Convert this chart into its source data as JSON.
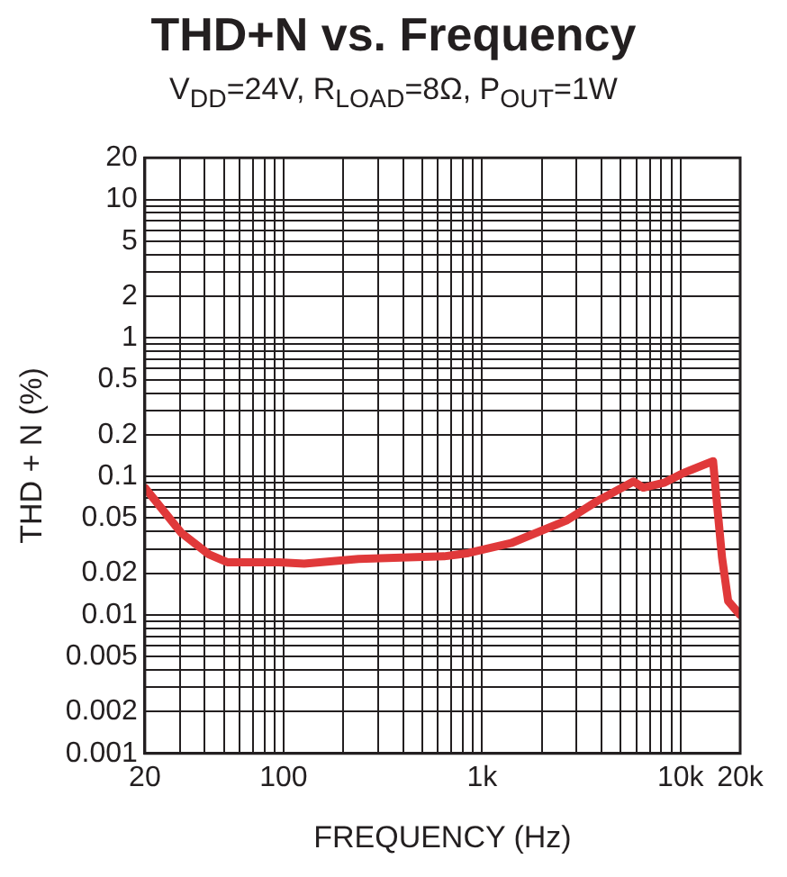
{
  "chart_data": {
    "type": "line",
    "title": "THD+N vs. Frequency",
    "subtitle": "V$_{DD}$=24V, R$_{LOAD}$=8Ω, P$_{OUT}$=1W",
    "xlabel": "FREQUENCY (Hz)",
    "ylabel": "THD + N (%)",
    "x": [
      20,
      30.6,
      42,
      52,
      95,
      127,
      239,
      644,
      855,
      1400,
      2660,
      3780,
      5800,
      6500,
      8260,
      10200,
      14600,
      16200,
      17400,
      20000
    ],
    "series": [
      {
        "color": "#e0393a",
        "values": [
          0.083,
          0.039,
          0.0274,
          0.024,
          0.024,
          0.0235,
          0.0254,
          0.0265,
          0.028,
          0.033,
          0.048,
          0.066,
          0.092,
          0.083,
          0.09,
          0.105,
          0.129,
          0.026,
          0.0126,
          0.01
        ]
      }
    ],
    "log": "xy",
    "xlim": [
      20,
      20000
    ],
    "ylim": [
      0.001,
      20
    ],
    "xticks": [
      20,
      {
        "value": 30,
        "label": null
      },
      {
        "value": 40,
        "label": null
      },
      {
        "value": 50,
        "label": null
      },
      {
        "value": 60,
        "label": null
      },
      {
        "value": 70,
        "label": null
      },
      {
        "value": 80,
        "label": null
      },
      {
        "value": 90,
        "label": null
      },
      100,
      {
        "value": 200,
        "label": null
      },
      {
        "value": 300,
        "label": null
      },
      {
        "value": 400,
        "label": null
      },
      {
        "value": 500,
        "label": null
      },
      {
        "value": 600,
        "label": null
      },
      {
        "value": 700,
        "label": null
      },
      {
        "value": 800,
        "label": null
      },
      {
        "value": 900,
        "label": null
      },
      {
        "value": 1000,
        "label": "1k"
      },
      {
        "value": 2000,
        "label": null
      },
      {
        "value": 3000,
        "label": null
      },
      {
        "value": 4000,
        "label": null
      },
      {
        "value": 5000,
        "label": null
      },
      {
        "value": 6000,
        "label": null
      },
      {
        "value": 7000,
        "label": null
      },
      {
        "value": 8000,
        "label": null
      },
      {
        "value": 9000,
        "label": null
      },
      {
        "value": 10000,
        "label": "10k"
      },
      {
        "value": 20000,
        "label": "20k"
      }
    ],
    "yticks": [
      0.001,
      0.002,
      {
        "value": 0.003,
        "label": null
      },
      {
        "value": 0.004,
        "label": null
      },
      0.005,
      {
        "value": 0.006,
        "label": null
      },
      {
        "value": 0.007,
        "label": null
      },
      {
        "value": 0.008,
        "label": null
      },
      {
        "value": 0.009,
        "label": null
      },
      0.01,
      0.02,
      {
        "value": 0.03,
        "label": null
      },
      {
        "value": 0.04,
        "label": null
      },
      0.05,
      {
        "value": 0.06,
        "label": null
      },
      {
        "value": 0.07,
        "label": null
      },
      {
        "value": 0.08,
        "label": null
      },
      {
        "value": 0.09,
        "label": null
      },
      0.1,
      0.2,
      {
        "value": 0.3,
        "label": null
      },
      {
        "value": 0.4,
        "label": null
      },
      0.5,
      {
        "value": 0.6,
        "label": null
      },
      {
        "value": 0.7,
        "label": null
      },
      {
        "value": 0.8,
        "label": null
      },
      {
        "value": 0.9,
        "label": null
      },
      1,
      2,
      {
        "value": 3,
        "label": null
      },
      {
        "value": 4,
        "label": null
      },
      5,
      {
        "value": 6,
        "label": null
      },
      {
        "value": 7,
        "label": null
      },
      {
        "value": 8,
        "label": null
      },
      {
        "value": 9,
        "label": null
      },
      10,
      20
    ],
    "grid": true,
    "legend": false,
    "marker": "none",
    "line_style": "solid"
  }
}
